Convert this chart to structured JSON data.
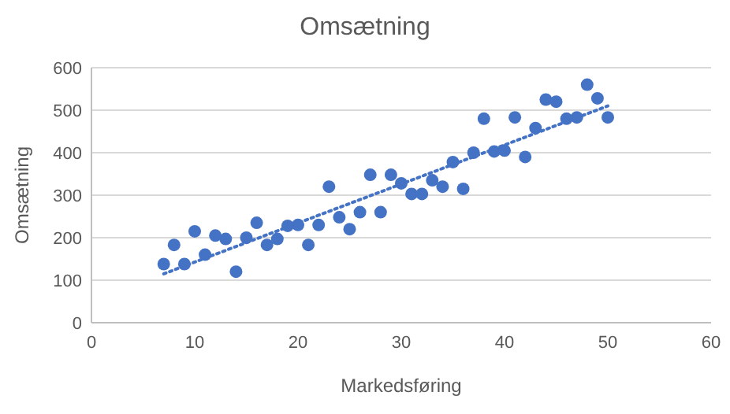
{
  "chart_data": {
    "type": "scatter",
    "title": "Omsætning",
    "xlabel": "Markedsføring",
    "ylabel": "Omsætning",
    "xlim": [
      0,
      60
    ],
    "xticks": [
      0,
      10,
      20,
      30,
      40,
      50,
      60
    ],
    "ylim": [
      0,
      600
    ],
    "yticks": [
      0,
      100,
      200,
      300,
      400,
      500,
      600
    ],
    "grid": "y",
    "series": [
      {
        "color": "#4472c4",
        "marker": "circle",
        "x": [
          7,
          8,
          9,
          10,
          11,
          12,
          13,
          14,
          15,
          16,
          17,
          18,
          19,
          20,
          21,
          22,
          23,
          24,
          25,
          26,
          27,
          28,
          29,
          30,
          31,
          32,
          33,
          34,
          35,
          36,
          37,
          38,
          39,
          40,
          41,
          42,
          43,
          44,
          45,
          46,
          47,
          48,
          49,
          50
        ],
        "values": [
          138,
          183,
          138,
          215,
          160,
          205,
          197,
          120,
          200,
          235,
          183,
          197,
          228,
          230,
          183,
          230,
          320,
          248,
          220,
          260,
          348,
          260,
          348,
          328,
          303,
          303,
          335,
          320,
          378,
          315,
          400,
          480,
          403,
          405,
          483,
          390,
          458,
          525,
          520,
          480,
          483,
          560,
          528,
          483
        ]
      },
      {
        "type": "line",
        "color": "#4472c4",
        "line_style": "dotted",
        "marker": "none",
        "x": [
          7,
          50
        ],
        "values": [
          115,
          510
        ]
      }
    ]
  }
}
